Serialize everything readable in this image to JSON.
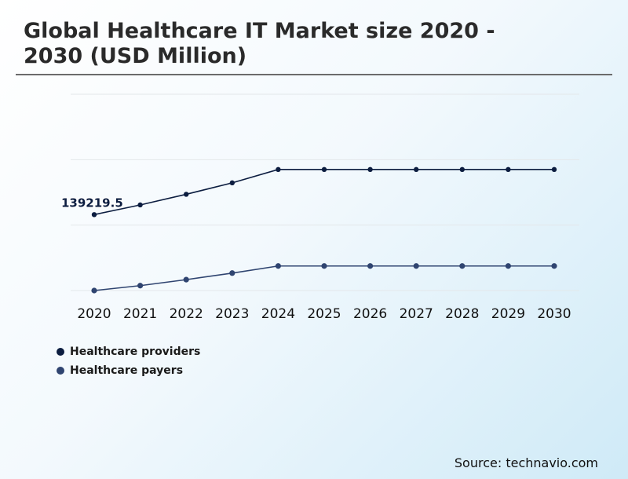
{
  "title": "Global Healthcare IT Market size 2020 - 2030 (USD Million)",
  "source": "Source: technavio.com",
  "colors": {
    "providers": "#0c1d40",
    "payers": "#2f4470",
    "grid": "#e3e7ea"
  },
  "chart_data": {
    "type": "line",
    "title": "Global Healthcare IT Market size 2020 - 2030 (USD Million)",
    "categories": [
      "2020",
      "2021",
      "2022",
      "2023",
      "2024",
      "2025",
      "2026",
      "2027",
      "2028",
      "2029",
      "2030"
    ],
    "ylim": [
      0,
      360000
    ],
    "grid": true,
    "legend_position": "bottom-left",
    "series": [
      {
        "name": "Healthcare providers",
        "values": [
          139219.5,
          157000,
          176500,
          197500,
          222000,
          222000,
          222000,
          222000,
          222000,
          222000,
          222000
        ]
      },
      {
        "name": "Healthcare payers",
        "values": [
          0,
          9000,
          20000,
          32000,
          45000,
          45000,
          45000,
          45000,
          45000,
          45000,
          45000
        ]
      }
    ],
    "annotations": [
      {
        "series": 0,
        "index": 0,
        "label": "139219.5"
      }
    ]
  }
}
